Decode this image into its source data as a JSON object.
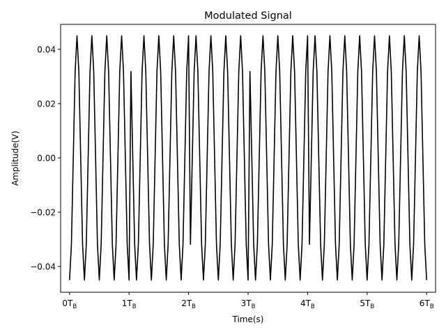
{
  "chart_data": {
    "type": "line",
    "title": "Modulated Signal",
    "xlabel": "Time(s)",
    "ylabel": "Amplitude(V)",
    "xlim": [
      -0.15,
      6.15
    ],
    "ylim": [
      -0.0495,
      0.0492
    ],
    "grid": false,
    "x_ticks": [
      {
        "value": 0,
        "main": "0T",
        "sub": "B"
      },
      {
        "value": 1,
        "main": "1T",
        "sub": "B"
      },
      {
        "value": 2,
        "main": "2T",
        "sub": "B"
      },
      {
        "value": 3,
        "main": "3T",
        "sub": "B"
      },
      {
        "value": 4,
        "main": "4T",
        "sub": "B"
      },
      {
        "value": 5,
        "main": "5T",
        "sub": "B"
      },
      {
        "value": 6,
        "main": "6T",
        "sub": "B"
      }
    ],
    "y_ticks": [
      {
        "value": 0.04,
        "label": "0.04"
      },
      {
        "value": 0.02,
        "label": "0.02"
      },
      {
        "value": 0.0,
        "label": "0.00"
      },
      {
        "value": -0.02,
        "label": "−0.02"
      },
      {
        "value": -0.04,
        "label": "−0.04"
      }
    ],
    "series": [
      {
        "color": "#000000",
        "amplitude": 0.045,
        "cycles_per_symbol": 4,
        "start_phase_deg": 270,
        "x_start": 0,
        "x_end": 6,
        "symbol_phases_deg": [
          0,
          180,
          0,
          180,
          0,
          0
        ],
        "samples_per_cycle": 8
      }
    ]
  }
}
